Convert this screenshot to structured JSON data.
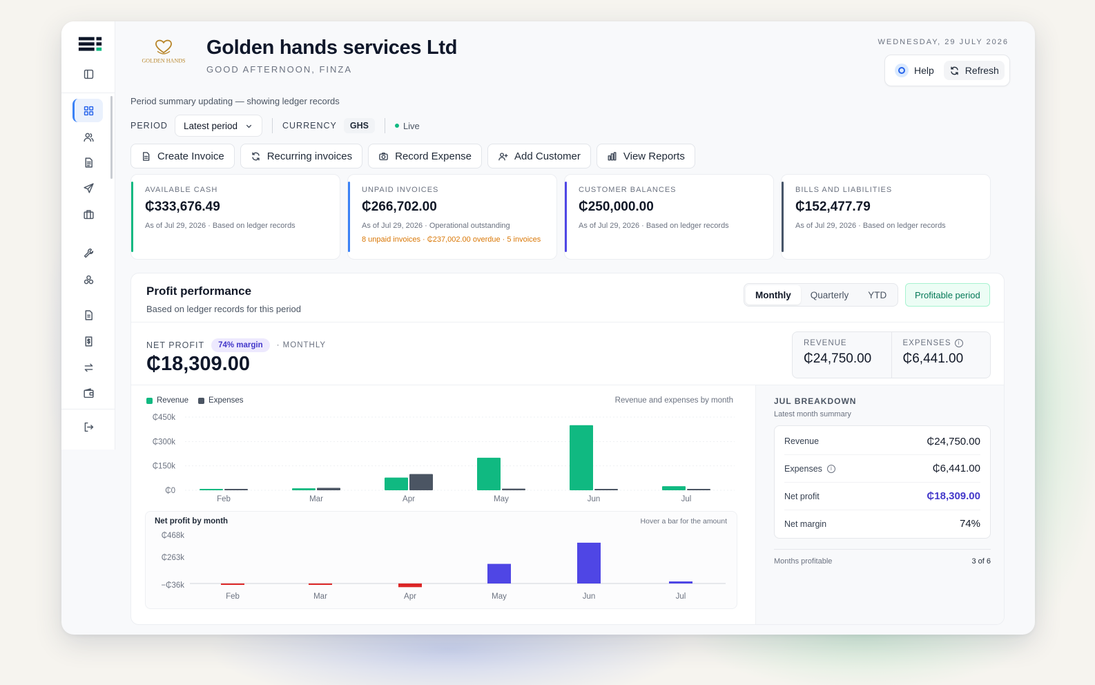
{
  "header": {
    "logo_text": "GOLDEN HANDS",
    "company": "Golden hands services Ltd",
    "greeting": "GOOD AFTERNOON, FINZA",
    "date": "WEDNESDAY, 29 JULY 2026",
    "help_label": "Help",
    "refresh_label": "Refresh"
  },
  "status_note": "Period summary updating — showing ledger records",
  "controls": {
    "period_label": "PERIOD",
    "period_value": "Latest period",
    "currency_label": "CURRENCY",
    "currency_value": "GHS",
    "live_label": "Live"
  },
  "actions": [
    {
      "label": "Create Invoice",
      "icon": "document-icon"
    },
    {
      "label": "Recurring invoices",
      "icon": "refresh-icon"
    },
    {
      "label": "Record Expense",
      "icon": "camera-icon"
    },
    {
      "label": "Add Customer",
      "icon": "user-plus-icon"
    },
    {
      "label": "View Reports",
      "icon": "bar-chart-icon"
    }
  ],
  "kpis": [
    {
      "label": "AVAILABLE CASH",
      "value": "₵333,676.49",
      "sub": "As of Jul 29, 2026 · Based on ledger records",
      "warn": "",
      "color": "#10b981"
    },
    {
      "label": "UNPAID INVOICES",
      "value": "₵266,702.00",
      "sub": "As of Jul 29, 2026 · Operational outstanding",
      "warn": "8 unpaid invoices · ₵237,002.00 overdue · 5 invoices",
      "color": "#3b82f6"
    },
    {
      "label": "CUSTOMER BALANCES",
      "value": "₵250,000.00",
      "sub": "As of Jul 29, 2026 · Based on ledger records",
      "warn": "",
      "color": "#4f46e5"
    },
    {
      "label": "BILLS AND LIABILITIES",
      "value": "₵152,477.79",
      "sub": "As of Jul 29, 2026 · Based on ledger records",
      "warn": "",
      "color": "#475569"
    }
  ],
  "performance": {
    "title": "Profit performance",
    "subtitle": "Based on ledger records for this period",
    "tabs": [
      "Monthly",
      "Quarterly",
      "YTD"
    ],
    "active_tab": "Monthly",
    "badge": "Profitable period",
    "net_profit_label": "NET PROFIT",
    "margin_pill": "74% margin",
    "frequency": "· MONTHLY",
    "net_profit_value": "₵18,309.00",
    "revenue_label": "REVENUE",
    "revenue_value": "₵24,750.00",
    "expenses_label": "EXPENSES",
    "expenses_value": "₵6,441.00",
    "legend_revenue": "Revenue",
    "legend_expenses": "Expenses",
    "chart_caption": "Revenue and expenses by month",
    "np_panel_title": "Net profit by month",
    "np_panel_hint": "Hover a bar for the amount"
  },
  "breakdown": {
    "title": "JUL BREAKDOWN",
    "subtitle": "Latest month summary",
    "rows": [
      {
        "label": "Revenue",
        "value": "₵24,750.00"
      },
      {
        "label": "Expenses",
        "value": "₵6,441.00"
      },
      {
        "label": "Net profit",
        "value": "₵18,309.00"
      },
      {
        "label": "Net margin",
        "value": "74%"
      }
    ],
    "footer_label": "Months profitable",
    "footer_value": "3 of 6"
  },
  "colors": {
    "revenue": "#10b981",
    "expenses": "#4b5563",
    "net_profit": "#4f46e5",
    "loss": "#dc2626"
  },
  "chart_data": [
    {
      "type": "bar",
      "title": "Revenue and expenses by month",
      "categories": [
        "Feb",
        "Mar",
        "Apr",
        "May",
        "Jun",
        "Jul"
      ],
      "series": [
        {
          "name": "Revenue",
          "values": [
            0,
            12000,
            78000,
            200000,
            400000,
            24750
          ]
        },
        {
          "name": "Expenses",
          "values": [
            3000,
            15000,
            100000,
            10000,
            5000,
            6441
          ]
        }
      ],
      "y_ticks": [
        "₵450k",
        "₵300k",
        "₵150k",
        "₵0"
      ],
      "ylim": [
        0,
        450000
      ]
    },
    {
      "type": "bar",
      "title": "Net profit by month",
      "categories": [
        "Feb",
        "Mar",
        "Apr",
        "May",
        "Jun",
        "Jul"
      ],
      "series": [
        {
          "name": "Net profit",
          "values": [
            -3000,
            -3000,
            -22000,
            190000,
            395000,
            18309
          ]
        }
      ],
      "y_ticks": [
        "₵468k",
        "₵263k",
        "−₵36k"
      ],
      "ylim": [
        -36000,
        468000
      ]
    }
  ]
}
